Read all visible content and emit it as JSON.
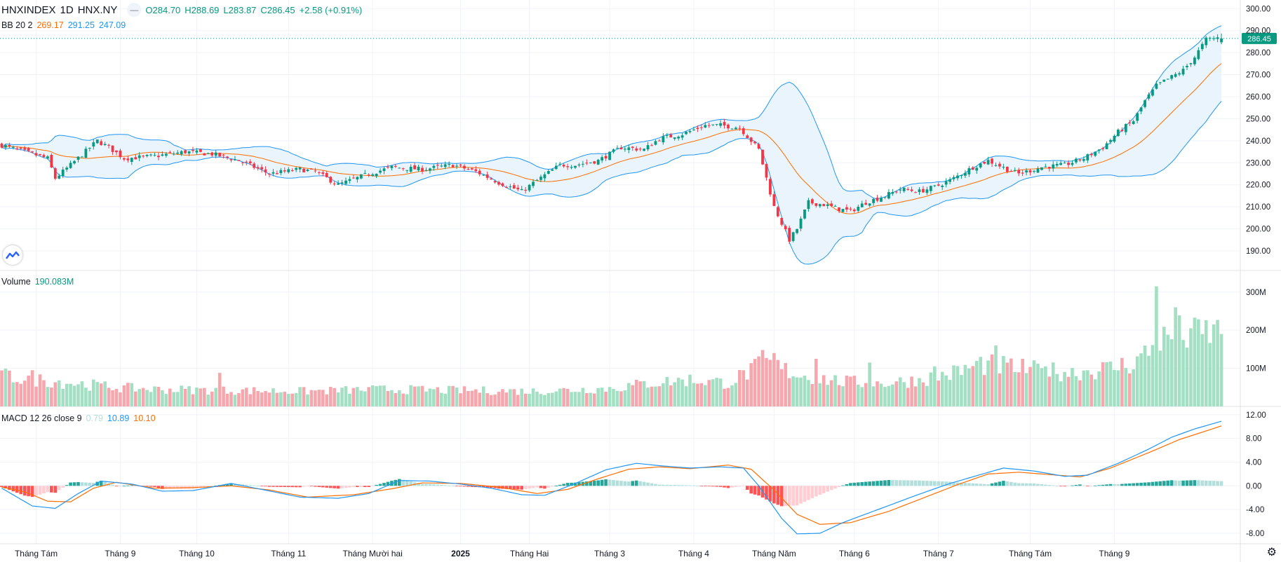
{
  "header": {
    "symbol": "HNXINDEX",
    "interval": "1D",
    "exchange": "HNX.NY",
    "control_icon": "minus-icon",
    "open": "O284.70",
    "high": "H288.69",
    "low": "L283.87",
    "close": "C286.45",
    "change": "+2.58 (+0.91%)"
  },
  "bb_legend": {
    "label": "BB 20 2",
    "basis": "269.17",
    "upper": "291.25",
    "lower": "247.09"
  },
  "volume_legend": {
    "label": "Volume",
    "value": "190.083M"
  },
  "macd_legend": {
    "label": "MACD 12 26 close 9",
    "hist": "0.79",
    "macd": "10.89",
    "signal": "10.10"
  },
  "price_badge": "286.45",
  "colors": {
    "up": "#089981",
    "down": "#f23645",
    "vol_up": "#a3dfc2",
    "vol_down": "#f6a7ae",
    "bb_band": "#2196f3",
    "bb_basis": "#ff6d00",
    "bb_fill": "#eaf4fc",
    "macd": "#2196f3",
    "signal": "#ff6d00",
    "hist_up_strong": "#26a69a",
    "hist_up_weak": "#b2dfdb",
    "hist_down_strong": "#ff5252",
    "hist_down_weak": "#ffcdd2"
  },
  "icons": {
    "logo": "tradingview-logo-icon",
    "settings": "gear-icon"
  },
  "chart_data": [
    {
      "type": "candlestick",
      "title": "HNXINDEX 1D HNX.NY",
      "ylim": [
        183,
        302
      ],
      "y_ticks": [
        "190.00",
        "200.00",
        "210.00",
        "220.00",
        "230.00",
        "240.00",
        "250.00",
        "260.00",
        "270.00",
        "280.00",
        "290.00",
        "300.00"
      ],
      "anchors": [
        [
          0,
          238
        ],
        [
          12,
          232
        ],
        [
          14,
          223
        ],
        [
          18,
          229
        ],
        [
          25,
          240
        ],
        [
          28,
          237
        ],
        [
          32,
          232
        ],
        [
          40,
          233
        ],
        [
          48,
          235
        ],
        [
          55,
          234
        ],
        [
          62,
          231
        ],
        [
          70,
          225
        ],
        [
          78,
          227
        ],
        [
          82,
          226
        ],
        [
          88,
          220
        ],
        [
          96,
          225
        ],
        [
          102,
          228
        ],
        [
          110,
          227
        ],
        [
          118,
          229
        ],
        [
          124,
          226
        ],
        [
          130,
          221
        ],
        [
          136,
          217
        ],
        [
          140,
          222
        ],
        [
          146,
          229
        ],
        [
          150,
          229
        ],
        [
          156,
          231
        ],
        [
          162,
          237
        ],
        [
          168,
          236
        ],
        [
          172,
          241
        ],
        [
          178,
          243
        ],
        [
          184,
          247
        ],
        [
          188,
          247
        ],
        [
          193,
          246
        ],
        [
          198,
          236
        ],
        [
          202,
          210
        ],
        [
          206,
          195
        ],
        [
          208,
          200
        ],
        [
          211,
          212
        ],
        [
          215,
          211
        ],
        [
          219,
          209
        ],
        [
          222,
          208
        ],
        [
          226,
          212
        ],
        [
          231,
          215
        ],
        [
          235,
          218
        ],
        [
          240,
          217
        ],
        [
          244,
          219
        ],
        [
          248,
          222
        ],
        [
          254,
          228
        ],
        [
          258,
          231
        ],
        [
          263,
          227
        ],
        [
          266,
          225
        ],
        [
          272,
          228
        ],
        [
          278,
          229
        ],
        [
          283,
          232
        ],
        [
          288,
          237
        ],
        [
          292,
          244
        ],
        [
          296,
          249
        ],
        [
          299,
          258
        ],
        [
          302,
          265
        ],
        [
          305,
          268
        ],
        [
          309,
          272
        ],
        [
          312,
          278
        ],
        [
          315,
          286
        ],
        [
          319,
          287
        ]
      ],
      "last": {
        "open": 284.7,
        "high": 288.69,
        "low": 283.87,
        "close": 286.45
      }
    },
    {
      "type": "line",
      "title": "BB 20 2",
      "series": [
        {
          "name": "basis",
          "values_last": 269.17
        },
        {
          "name": "upper",
          "values_last": 291.25
        },
        {
          "name": "lower",
          "values_last": 247.09
        }
      ]
    },
    {
      "type": "bar",
      "title": "Volume",
      "y_ticks": [
        "100M",
        "200M",
        "300M"
      ],
      "ylim": [
        0,
        340
      ],
      "anchors": [
        [
          0,
          80
        ],
        [
          15,
          65
        ],
        [
          30,
          50
        ],
        [
          40,
          45
        ],
        [
          60,
          42
        ],
        [
          80,
          40
        ],
        [
          100,
          45
        ],
        [
          120,
          42
        ],
        [
          140,
          40
        ],
        [
          160,
          48
        ],
        [
          170,
          62
        ],
        [
          180,
          70
        ],
        [
          190,
          62
        ],
        [
          200,
          115
        ],
        [
          205,
          95
        ],
        [
          210,
          80
        ],
        [
          220,
          65
        ],
        [
          230,
          60
        ],
        [
          240,
          70
        ],
        [
          250,
          90
        ],
        [
          256,
          110
        ],
        [
          262,
          105
        ],
        [
          270,
          95
        ],
        [
          280,
          90
        ],
        [
          290,
          100
        ],
        [
          296,
          115
        ],
        [
          300,
          145
        ],
        [
          304,
          175
        ],
        [
          308,
          190
        ],
        [
          312,
          185
        ],
        [
          316,
          195
        ],
        [
          319,
          190
        ]
      ],
      "spikes": [
        [
          8,
          95
        ],
        [
          57,
          88
        ],
        [
          199,
          148
        ],
        [
          202,
          140
        ],
        [
          213,
          125
        ],
        [
          227,
          115
        ],
        [
          244,
          105
        ],
        [
          256,
          130
        ],
        [
          260,
          160
        ],
        [
          273,
          105
        ],
        [
          302,
          315
        ],
        [
          307,
          260
        ],
        [
          311,
          205
        ],
        [
          317,
          215
        ]
      ],
      "last": 190.083
    },
    {
      "type": "line",
      "title": "MACD 12 26 close 9",
      "y_ticks": [
        "-8.00",
        "-4.00",
        "0.00",
        "4.00",
        "8.00",
        "12.00"
      ],
      "ylim": [
        -9.3,
        12.8
      ],
      "macd_anchors": [
        [
          0,
          -0.4
        ],
        [
          8,
          -3.4
        ],
        [
          14,
          -3.8
        ],
        [
          20,
          -1.3
        ],
        [
          26,
          0.8
        ],
        [
          34,
          0.3
        ],
        [
          42,
          -0.9
        ],
        [
          50,
          -0.8
        ],
        [
          60,
          0.4
        ],
        [
          68,
          -0.6
        ],
        [
          78,
          -1.9
        ],
        [
          88,
          -2.1
        ],
        [
          96,
          -1.3
        ],
        [
          104,
          0.9
        ],
        [
          112,
          0.8
        ],
        [
          120,
          0.3
        ],
        [
          128,
          -0.4
        ],
        [
          136,
          -1.5
        ],
        [
          142,
          -1.6
        ],
        [
          150,
          0.4
        ],
        [
          158,
          2.7
        ],
        [
          166,
          3.8
        ],
        [
          172,
          3.4
        ],
        [
          180,
          3.0
        ],
        [
          188,
          3.2
        ],
        [
          194,
          3.0
        ],
        [
          198,
          0.0
        ],
        [
          204,
          -5.5
        ],
        [
          208,
          -8.1
        ],
        [
          214,
          -8.0
        ],
        [
          220,
          -6.2
        ],
        [
          230,
          -3.8
        ],
        [
          240,
          -1.4
        ],
        [
          248,
          0.4
        ],
        [
          256,
          1.9
        ],
        [
          262,
          3.0
        ],
        [
          270,
          2.5
        ],
        [
          278,
          1.6
        ],
        [
          284,
          1.8
        ],
        [
          292,
          3.8
        ],
        [
          300,
          6.2
        ],
        [
          306,
          8.2
        ],
        [
          312,
          9.6
        ],
        [
          319,
          10.89
        ]
      ],
      "signal_anchors": [
        [
          0,
          -0.2
        ],
        [
          6,
          -1.0
        ],
        [
          12,
          -2.6
        ],
        [
          18,
          -2.7
        ],
        [
          24,
          -0.4
        ],
        [
          30,
          0.6
        ],
        [
          40,
          -0.4
        ],
        [
          50,
          -0.3
        ],
        [
          60,
          0.0
        ],
        [
          70,
          -0.7
        ],
        [
          80,
          -1.9
        ],
        [
          92,
          -1.5
        ],
        [
          102,
          -0.5
        ],
        [
          110,
          0.5
        ],
        [
          120,
          0.4
        ],
        [
          130,
          -0.2
        ],
        [
          140,
          -1.3
        ],
        [
          148,
          -0.6
        ],
        [
          156,
          1.2
        ],
        [
          164,
          2.8
        ],
        [
          172,
          3.2
        ],
        [
          180,
          2.9
        ],
        [
          190,
          3.5
        ],
        [
          196,
          2.8
        ],
        [
          202,
          -0.7
        ],
        [
          208,
          -4.8
        ],
        [
          214,
          -6.5
        ],
        [
          222,
          -6.2
        ],
        [
          232,
          -4.3
        ],
        [
          242,
          -1.8
        ],
        [
          250,
          0.2
        ],
        [
          258,
          2.0
        ],
        [
          266,
          2.3
        ],
        [
          274,
          1.9
        ],
        [
          282,
          1.5
        ],
        [
          290,
          3.0
        ],
        [
          300,
          5.6
        ],
        [
          308,
          7.8
        ],
        [
          319,
          10.1
        ]
      ],
      "last": {
        "hist": 0.79,
        "macd": 10.89,
        "signal": 10.1
      }
    }
  ],
  "x_axis": {
    "labels": [
      {
        "text": "Tháng Tám",
        "bold": false,
        "bar": 9
      },
      {
        "text": "Tháng 9",
        "bold": false,
        "bar": 31
      },
      {
        "text": "Tháng 10",
        "bold": false,
        "bar": 51
      },
      {
        "text": "Tháng 11",
        "bold": false,
        "bar": 75
      },
      {
        "text": "Tháng Mười hai",
        "bold": false,
        "bar": 97
      },
      {
        "text": "2025",
        "bold": true,
        "bar": 120
      },
      {
        "text": "Tháng Hai",
        "bold": false,
        "bar": 138
      },
      {
        "text": "Tháng 3",
        "bold": false,
        "bar": 159
      },
      {
        "text": "Tháng 4",
        "bold": false,
        "bar": 181
      },
      {
        "text": "Tháng Năm",
        "bold": false,
        "bar": 202
      },
      {
        "text": "Tháng 6",
        "bold": false,
        "bar": 223
      },
      {
        "text": "Tháng 7",
        "bold": false,
        "bar": 245
      },
      {
        "text": "Tháng Tám",
        "bold": false,
        "bar": 269
      },
      {
        "text": "Tháng 9",
        "bold": false,
        "bar": 291
      }
    ]
  }
}
